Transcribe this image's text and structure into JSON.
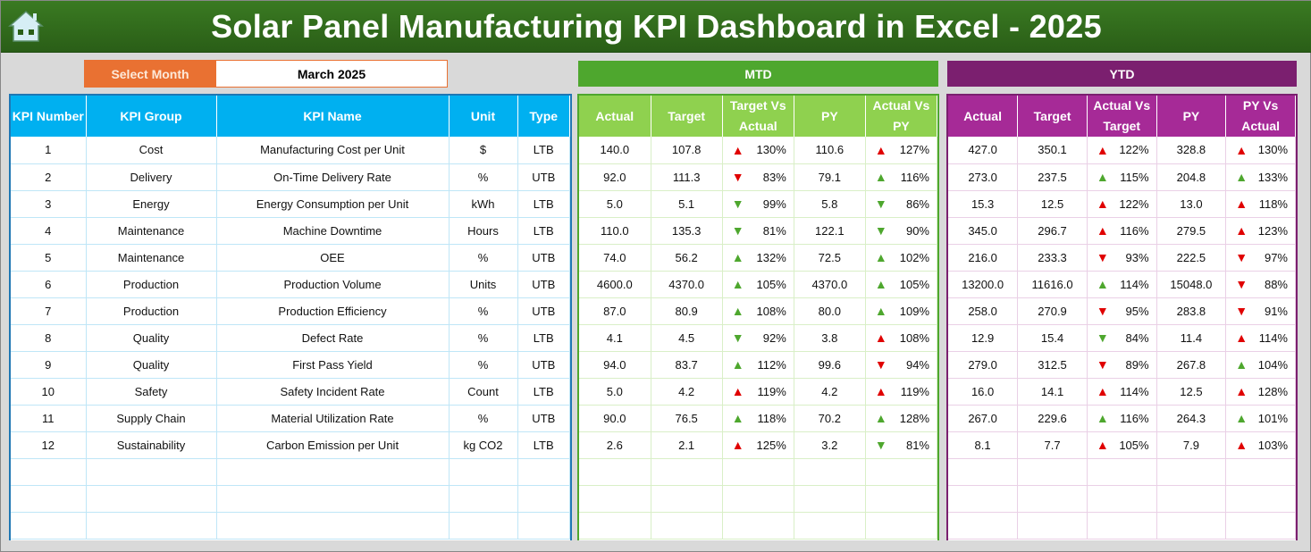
{
  "title": "Solar Panel Manufacturing KPI Dashboard in Excel - 2025",
  "select_month": {
    "label": "Select Month",
    "value": "March 2025"
  },
  "mtd_label": "MTD",
  "ytd_label": "YTD",
  "colors": {
    "up_red": "#e00000",
    "down_red": "#e00000",
    "up_green": "#4ea72e",
    "down_green": "#4ea72e"
  },
  "left_headers": [
    "KPI Number",
    "KPI Group",
    "KPI Name",
    "Unit",
    "Type"
  ],
  "mtd_headers": [
    "Actual",
    "Target",
    "Target Vs Actual",
    "PY",
    "Actual Vs PY"
  ],
  "ytd_headers": [
    "Actual",
    "Target",
    "Actual Vs Target",
    "PY",
    "PY Vs Actual"
  ],
  "rows": [
    {
      "num": "1",
      "group": "Cost",
      "name": "Manufacturing Cost per Unit",
      "unit": "$",
      "type": "LTB",
      "mtd": [
        "140.0",
        "107.8",
        [
          "up",
          "red",
          "130%"
        ],
        "110.6",
        [
          "up",
          "red",
          "127%"
        ]
      ],
      "ytd": [
        "427.0",
        "350.1",
        [
          "up",
          "red",
          "122%"
        ],
        "328.8",
        [
          "up",
          "red",
          "130%"
        ]
      ]
    },
    {
      "num": "2",
      "group": "Delivery",
      "name": "On-Time Delivery Rate",
      "unit": "%",
      "type": "UTB",
      "mtd": [
        "92.0",
        "111.3",
        [
          "down",
          "red",
          "83%"
        ],
        "79.1",
        [
          "up",
          "green",
          "116%"
        ]
      ],
      "ytd": [
        "273.0",
        "237.5",
        [
          "up",
          "green",
          "115%"
        ],
        "204.8",
        [
          "up",
          "green",
          "133%"
        ]
      ]
    },
    {
      "num": "3",
      "group": "Energy",
      "name": "Energy Consumption per Unit",
      "unit": "kWh",
      "type": "LTB",
      "mtd": [
        "5.0",
        "5.1",
        [
          "down",
          "green",
          "99%"
        ],
        "5.8",
        [
          "down",
          "green",
          "86%"
        ]
      ],
      "ytd": [
        "15.3",
        "12.5",
        [
          "up",
          "red",
          "122%"
        ],
        "13.0",
        [
          "up",
          "red",
          "118%"
        ]
      ]
    },
    {
      "num": "4",
      "group": "Maintenance",
      "name": "Machine Downtime",
      "unit": "Hours",
      "type": "LTB",
      "mtd": [
        "110.0",
        "135.3",
        [
          "down",
          "green",
          "81%"
        ],
        "122.1",
        [
          "down",
          "green",
          "90%"
        ]
      ],
      "ytd": [
        "345.0",
        "296.7",
        [
          "up",
          "red",
          "116%"
        ],
        "279.5",
        [
          "up",
          "red",
          "123%"
        ]
      ]
    },
    {
      "num": "5",
      "group": "Maintenance",
      "name": "OEE",
      "unit": "%",
      "type": "UTB",
      "mtd": [
        "74.0",
        "56.2",
        [
          "up",
          "green",
          "132%"
        ],
        "72.5",
        [
          "up",
          "green",
          "102%"
        ]
      ],
      "ytd": [
        "216.0",
        "233.3",
        [
          "down",
          "red",
          "93%"
        ],
        "222.5",
        [
          "down",
          "red",
          "97%"
        ]
      ]
    },
    {
      "num": "6",
      "group": "Production",
      "name": "Production Volume",
      "unit": "Units",
      "type": "UTB",
      "mtd": [
        "4600.0",
        "4370.0",
        [
          "up",
          "green",
          "105%"
        ],
        "4370.0",
        [
          "up",
          "green",
          "105%"
        ]
      ],
      "ytd": [
        "13200.0",
        "11616.0",
        [
          "up",
          "green",
          "114%"
        ],
        "15048.0",
        [
          "down",
          "red",
          "88%"
        ]
      ]
    },
    {
      "num": "7",
      "group": "Production",
      "name": "Production Efficiency",
      "unit": "%",
      "type": "UTB",
      "mtd": [
        "87.0",
        "80.9",
        [
          "up",
          "green",
          "108%"
        ],
        "80.0",
        [
          "up",
          "green",
          "109%"
        ]
      ],
      "ytd": [
        "258.0",
        "270.9",
        [
          "down",
          "red",
          "95%"
        ],
        "283.8",
        [
          "down",
          "red",
          "91%"
        ]
      ]
    },
    {
      "num": "8",
      "group": "Quality",
      "name": "Defect Rate",
      "unit": "%",
      "type": "LTB",
      "mtd": [
        "4.1",
        "4.5",
        [
          "down",
          "green",
          "92%"
        ],
        "3.8",
        [
          "up",
          "red",
          "108%"
        ]
      ],
      "ytd": [
        "12.9",
        "15.4",
        [
          "down",
          "green",
          "84%"
        ],
        "11.4",
        [
          "up",
          "red",
          "114%"
        ]
      ]
    },
    {
      "num": "9",
      "group": "Quality",
      "name": "First Pass Yield",
      "unit": "%",
      "type": "UTB",
      "mtd": [
        "94.0",
        "83.7",
        [
          "up",
          "green",
          "112%"
        ],
        "99.6",
        [
          "down",
          "red",
          "94%"
        ]
      ],
      "ytd": [
        "279.0",
        "312.5",
        [
          "down",
          "red",
          "89%"
        ],
        "267.8",
        [
          "up",
          "green",
          "104%"
        ]
      ]
    },
    {
      "num": "10",
      "group": "Safety",
      "name": "Safety Incident Rate",
      "unit": "Count",
      "type": "LTB",
      "mtd": [
        "5.0",
        "4.2",
        [
          "up",
          "red",
          "119%"
        ],
        "4.2",
        [
          "up",
          "red",
          "119%"
        ]
      ],
      "ytd": [
        "16.0",
        "14.1",
        [
          "up",
          "red",
          "114%"
        ],
        "12.5",
        [
          "up",
          "red",
          "128%"
        ]
      ]
    },
    {
      "num": "11",
      "group": "Supply Chain",
      "name": "Material Utilization Rate",
      "unit": "%",
      "type": "UTB",
      "mtd": [
        "90.0",
        "76.5",
        [
          "up",
          "green",
          "118%"
        ],
        "70.2",
        [
          "up",
          "green",
          "128%"
        ]
      ],
      "ytd": [
        "267.0",
        "229.6",
        [
          "up",
          "green",
          "116%"
        ],
        "264.3",
        [
          "up",
          "green",
          "101%"
        ]
      ]
    },
    {
      "num": "12",
      "group": "Sustainability",
      "name": "Carbon Emission per Unit",
      "unit": "kg CO2",
      "type": "LTB",
      "mtd": [
        "2.6",
        "2.1",
        [
          "up",
          "red",
          "125%"
        ],
        "3.2",
        [
          "down",
          "green",
          "81%"
        ]
      ],
      "ytd": [
        "8.1",
        "7.7",
        [
          "up",
          "red",
          "105%"
        ],
        "7.9",
        [
          "up",
          "red",
          "103%"
        ]
      ]
    }
  ]
}
